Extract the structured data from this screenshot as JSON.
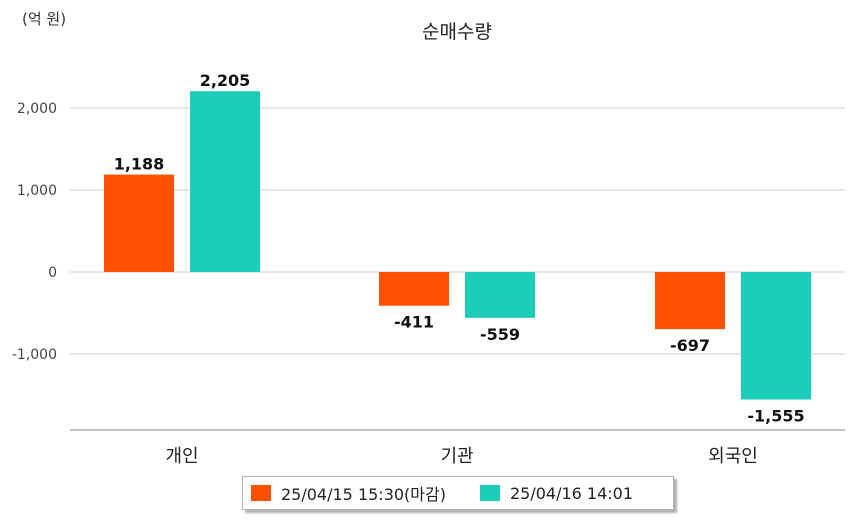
{
  "chart_data": {
    "type": "bar",
    "title": "순매수량",
    "unit_label": "(억 원)",
    "categories": [
      "개인",
      "기관",
      "외국인"
    ],
    "series": [
      {
        "name": "25/04/15 15:30(마감)",
        "color": "#ff5000",
        "values": [
          1188,
          -411,
          -697
        ],
        "labels": [
          "1,188",
          "-411",
          "-697"
        ]
      },
      {
        "name": "25/04/16 14:01",
        "color": "#1dcdbb",
        "values": [
          2205,
          -559,
          -1555
        ],
        "labels": [
          "2,205",
          "-559",
          "-1,555"
        ]
      }
    ],
    "yticks": [
      2000,
      1000,
      0,
      -1000
    ],
    "ytick_labels": [
      "2,000",
      "1,000",
      "0",
      "-1,000"
    ],
    "ylim": [
      -1950,
      2500
    ],
    "grid": true,
    "legend_position": "bottom"
  }
}
